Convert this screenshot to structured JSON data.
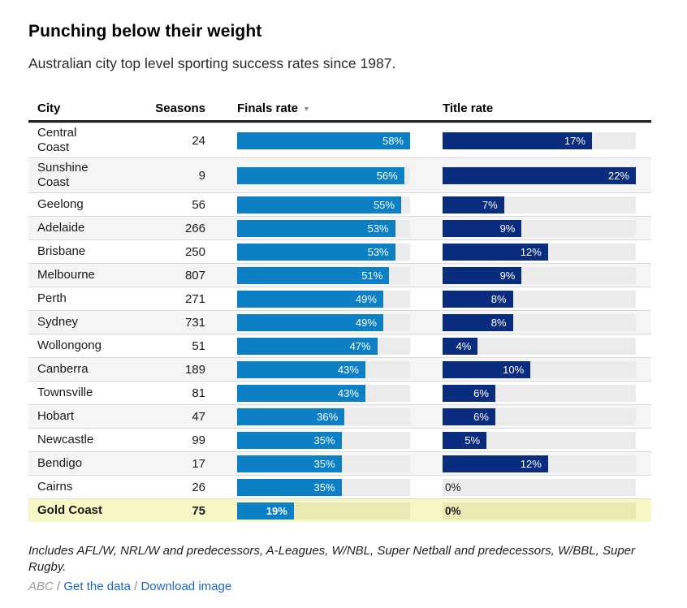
{
  "header": {
    "title": "Punching below their weight",
    "subtitle": "Australian city top level sporting success rates since 1987."
  },
  "table": {
    "columns": {
      "city": "City",
      "seasons": "Seasons",
      "finals": "Finals rate",
      "title": "Title rate"
    },
    "sort_icon": "▼",
    "unit": "%"
  },
  "chart_data": {
    "type": "bar",
    "title": "Punching below their weight",
    "subtitle": "Australian city top level sporting success rates since 1987.",
    "categories": [
      "Central Coast",
      "Sunshine Coast",
      "Geelong",
      "Adelaide",
      "Brisbane",
      "Melbourne",
      "Perth",
      "Sydney",
      "Wollongong",
      "Canberra",
      "Townsville",
      "Hobart",
      "Newcastle",
      "Bendigo",
      "Cairns",
      "Gold Coast"
    ],
    "series": [
      {
        "name": "Seasons",
        "values": [
          24,
          9,
          56,
          266,
          250,
          807,
          271,
          731,
          51,
          189,
          81,
          47,
          99,
          17,
          26,
          75
        ]
      },
      {
        "name": "Finals rate",
        "unit": "%",
        "axis_max": 58,
        "values": [
          58,
          56,
          55,
          53,
          53,
          51,
          49,
          49,
          47,
          43,
          43,
          36,
          35,
          35,
          35,
          19
        ]
      },
      {
        "name": "Title rate",
        "unit": "%",
        "axis_max": 22,
        "values": [
          17,
          22,
          7,
          9,
          12,
          9,
          8,
          8,
          4,
          10,
          6,
          6,
          5,
          12,
          0,
          0
        ]
      }
    ],
    "sorted_by": "Finals rate",
    "sort_order": "descending",
    "highlighted_category": "Gold Coast",
    "legend": "none",
    "grid": "off"
  },
  "rows": [
    {
      "city": "Central Coast",
      "seasons": 24,
      "finals": 58,
      "title": 17,
      "highlight": false
    },
    {
      "city": "Sunshine Coast",
      "seasons": 9,
      "finals": 56,
      "title": 22,
      "highlight": false
    },
    {
      "city": "Geelong",
      "seasons": 56,
      "finals": 55,
      "title": 7,
      "highlight": false
    },
    {
      "city": "Adelaide",
      "seasons": 266,
      "finals": 53,
      "title": 9,
      "highlight": false
    },
    {
      "city": "Brisbane",
      "seasons": 250,
      "finals": 53,
      "title": 12,
      "highlight": false
    },
    {
      "city": "Melbourne",
      "seasons": 807,
      "finals": 51,
      "title": 9,
      "highlight": false
    },
    {
      "city": "Perth",
      "seasons": 271,
      "finals": 49,
      "title": 8,
      "highlight": false
    },
    {
      "city": "Sydney",
      "seasons": 731,
      "finals": 49,
      "title": 8,
      "highlight": false
    },
    {
      "city": "Wollongong",
      "seasons": 51,
      "finals": 47,
      "title": 4,
      "highlight": false
    },
    {
      "city": "Canberra",
      "seasons": 189,
      "finals": 43,
      "title": 10,
      "highlight": false
    },
    {
      "city": "Townsville",
      "seasons": 81,
      "finals": 43,
      "title": 6,
      "highlight": false
    },
    {
      "city": "Hobart",
      "seasons": 47,
      "finals": 36,
      "title": 6,
      "highlight": false
    },
    {
      "city": "Newcastle",
      "seasons": 99,
      "finals": 35,
      "title": 5,
      "highlight": false
    },
    {
      "city": "Bendigo",
      "seasons": 17,
      "finals": 35,
      "title": 12,
      "highlight": false
    },
    {
      "city": "Cairns",
      "seasons": 26,
      "finals": 35,
      "title": 0,
      "highlight": false
    },
    {
      "city": "Gold Coast",
      "seasons": 75,
      "finals": 19,
      "title": 0,
      "highlight": true
    }
  ],
  "colors": {
    "finals_bar": "#0c7fc5",
    "title_bar": "#0a2c7e",
    "bar_track": "#ebebeb",
    "row_stripe": "#f5f5f5",
    "highlight_row": "#f8f8c6",
    "highlight_track": "#e9e9b4",
    "link": "#1b66c9",
    "header_rule": "#1f1f1f"
  },
  "footer": {
    "note": "Includes AFL/W, NRL/W and predecessors, A-Leagues, W/NBL, Super Netball and predecessors, W/BBL, Super Rugby.",
    "source": "ABC",
    "separator": "/",
    "links": {
      "get_data": "Get the data",
      "download": "Download image"
    }
  }
}
